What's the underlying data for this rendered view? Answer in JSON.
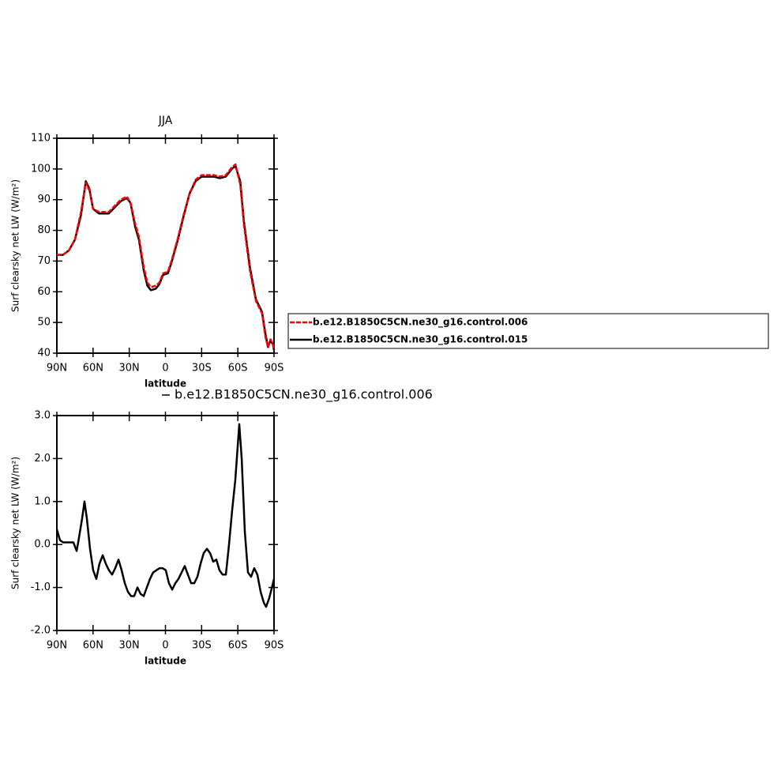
{
  "chart_data": [
    {
      "type": "line",
      "title": "JJA",
      "xlabel": "latitude",
      "ylabel": "Surf clearsky net LW (W/m²)",
      "x": [
        90,
        85,
        80,
        75,
        70,
        66,
        63,
        60,
        55,
        50,
        47,
        42,
        37,
        32,
        29,
        25,
        22,
        18,
        15,
        12,
        8,
        5,
        2,
        -2,
        -5,
        -10,
        -15,
        -20,
        -25,
        -30,
        -35,
        -40,
        -45,
        -50,
        -55,
        -58,
        -62,
        -65,
        -70,
        -75,
        -80,
        -83,
        -85,
        -87,
        -89,
        -90
      ],
      "series": [
        {
          "name": "b.e12.B1850C5CN.ne30_g16.control.015",
          "color": "#000000",
          "line_style": "solid",
          "values": [
            72,
            72,
            73.5,
            77,
            85,
            96,
            93.5,
            87,
            85.5,
            85.5,
            85.5,
            87.5,
            89.5,
            90.5,
            89,
            81,
            77,
            67,
            62,
            60.5,
            61,
            62.5,
            65.5,
            66,
            69.5,
            76.5,
            84.5,
            92,
            96,
            97.5,
            97.5,
            97.5,
            97,
            97.5,
            100,
            101,
            96,
            83,
            68,
            57.5,
            53.5,
            46,
            42,
            44,
            43,
            41
          ]
        },
        {
          "name": "b.e12.B1850C5CN.ne30_g16.control.006",
          "color": "#ff0000",
          "line_style": "dashed",
          "values": [
            72,
            72,
            73.5,
            77,
            86,
            95.5,
            93,
            87,
            86,
            86,
            86,
            88,
            90,
            91,
            89,
            82,
            78,
            68,
            63,
            61.5,
            62,
            63,
            66,
            66.5,
            70,
            77,
            85,
            92,
            96.5,
            98,
            98,
            98,
            97.5,
            98,
            100.5,
            101.5,
            95,
            82,
            67,
            57,
            53,
            45,
            42,
            44.5,
            43,
            41
          ]
        }
      ],
      "xlim": [
        90,
        -90
      ],
      "xticks": [
        {
          "value": 90,
          "label": "90N"
        },
        {
          "value": 60,
          "label": "60N"
        },
        {
          "value": 30,
          "label": "30N"
        },
        0,
        {
          "value": -30,
          "label": "30S"
        },
        {
          "value": -60,
          "label": "60S"
        },
        {
          "value": -90,
          "label": "90S"
        }
      ],
      "ylim": [
        40,
        110
      ],
      "yticks": [
        40,
        50,
        60,
        70,
        80,
        90,
        100,
        110
      ],
      "legend": "right"
    },
    {
      "type": "line",
      "xlabel": "latitude",
      "ylabel": "Surf clearsky net LW (W/m²)",
      "x": [
        90,
        87.4,
        84.8,
        82.1,
        79.5,
        76.3,
        73.6,
        71.7,
        69.1,
        67.1,
        65.1,
        62.5,
        59.9,
        57.3,
        54.7,
        52,
        49.4,
        46.8,
        44.2,
        41.6,
        38.9,
        36.3,
        33.7,
        31.1,
        28.5,
        25.9,
        23.2,
        20.6,
        18,
        15.4,
        12.8,
        10.2,
        7.5,
        4.9,
        2.3,
        -0.3,
        -2.9,
        -5.6,
        -8.2,
        -10.8,
        -13.4,
        -16,
        -18.6,
        -21.3,
        -23.9,
        -26.5,
        -29.1,
        -31.7,
        -34.4,
        -37,
        -39.6,
        -42.2,
        -44.8,
        -47.4,
        -50.1,
        -52.7,
        -55.3,
        -57.9,
        -61.2,
        -63.2,
        -65.8,
        -68.4,
        -71,
        -73.6,
        -76.2,
        -78.9,
        -81.5,
        -83.4,
        -86,
        -88.7,
        -90
      ],
      "series": [
        {
          "name": "b.e12.B1850C5CN.ne30_g16.control.006",
          "color": "#000000",
          "line_style": "solid",
          "values": [
            0.35,
            0.1,
            0.05,
            0.05,
            0.05,
            0.05,
            -0.15,
            0.15,
            0.6,
            1.0,
            0.6,
            -0.1,
            -0.6,
            -0.8,
            -0.45,
            -0.25,
            -0.45,
            -0.6,
            -0.7,
            -0.55,
            -0.35,
            -0.6,
            -0.9,
            -1.1,
            -1.2,
            -1.2,
            -1.0,
            -1.15,
            -1.2,
            -1.0,
            -0.8,
            -0.65,
            -0.6,
            -0.55,
            -0.55,
            -0.6,
            -0.9,
            -1.05,
            -0.9,
            -0.8,
            -0.65,
            -0.5,
            -0.7,
            -0.9,
            -0.9,
            -0.75,
            -0.45,
            -0.2,
            -0.1,
            -0.2,
            -0.4,
            -0.35,
            -0.6,
            -0.7,
            -0.7,
            0.0,
            0.8,
            1.5,
            2.8,
            2.0,
            0.3,
            -0.65,
            -0.75,
            -0.55,
            -0.7,
            -1.1,
            -1.35,
            -1.45,
            -1.25,
            -0.95,
            -0.8
          ]
        }
      ],
      "xlim": [
        90,
        -90
      ],
      "xticks": [
        {
          "value": 90,
          "label": "90N"
        },
        {
          "value": 60,
          "label": "60N"
        },
        {
          "value": 30,
          "label": "30N"
        },
        0,
        {
          "value": -30,
          "label": "30S"
        },
        {
          "value": -60,
          "label": "60S"
        },
        {
          "value": -90,
          "label": "90S"
        }
      ],
      "ylim": [
        -2,
        3
      ],
      "yticks": [
        {
          "value": -2,
          "label": "-2.0"
        },
        {
          "value": -1,
          "label": "-1.0"
        },
        {
          "value": 0,
          "label": "0.0"
        },
        {
          "value": 1,
          "label": "1.0"
        },
        {
          "value": 2,
          "label": "2.0"
        },
        {
          "value": 3,
          "label": "3.0"
        }
      ],
      "legend": "top"
    }
  ]
}
